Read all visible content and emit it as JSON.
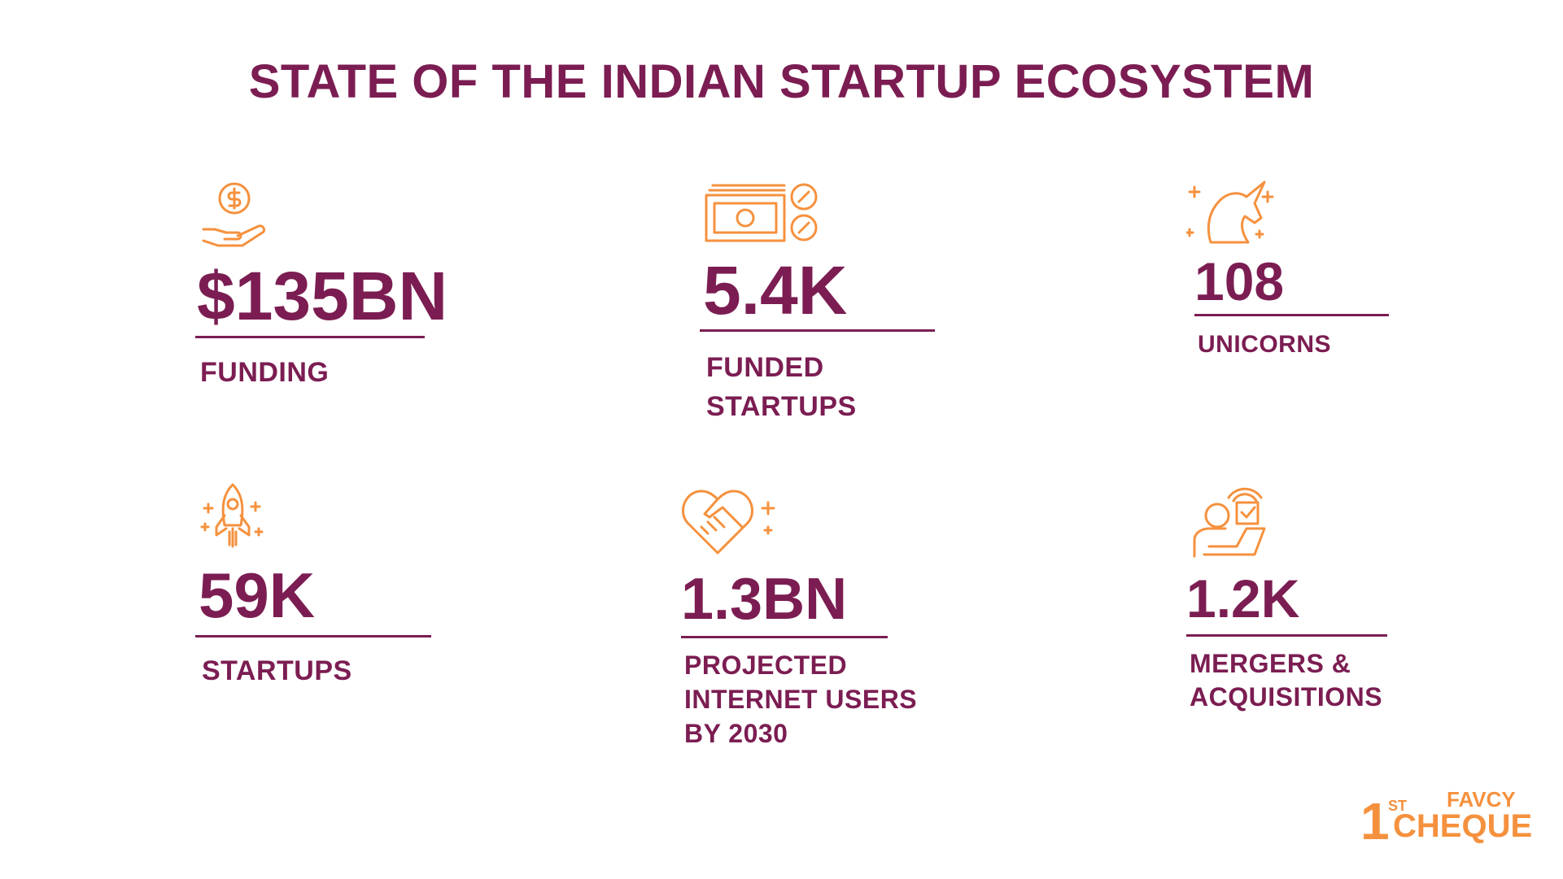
{
  "title": "STATE OF THE INDIAN STARTUP ECOSYSTEM",
  "stats": [
    {
      "value": "$135BN",
      "label": "FUNDING"
    },
    {
      "value": "5.4K",
      "label": "FUNDED STARTUPS"
    },
    {
      "value": "108",
      "label": "UNICORNS"
    },
    {
      "value": "59K",
      "label": "STARTUPS"
    },
    {
      "value": "1.3BN",
      "label": "PROJECTED INTERNET USERS BY 2030"
    },
    {
      "value": "1.2K",
      "label": "MERGERS & ACQUISITIONS"
    }
  ],
  "logo": {
    "brand": "FAVCY",
    "number": "1",
    "suffix": "ST",
    "name": "CHEQUE"
  }
}
